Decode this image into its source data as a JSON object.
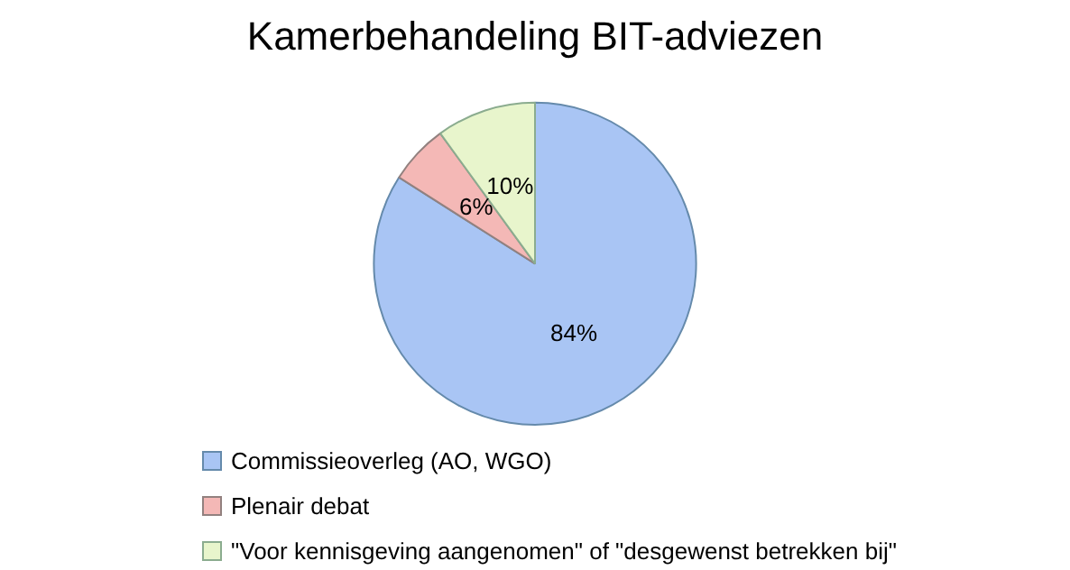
{
  "chart_data": {
    "type": "pie",
    "title": "Kamerbehandeling BIT-adviezen",
    "categories": [
      "Commissieoverleg (AO, WGO)",
      "Plenair debat",
      "\"Voor kennisgeving aangenomen\" of \"desgewenst betrekken bij\""
    ],
    "values": [
      84,
      6,
      10
    ],
    "value_labels": [
      "84%",
      "6%",
      "10%"
    ],
    "colors": [
      "#a9c5f4",
      "#f4b8b6",
      "#e8f5cc"
    ],
    "legend": "bottom"
  }
}
